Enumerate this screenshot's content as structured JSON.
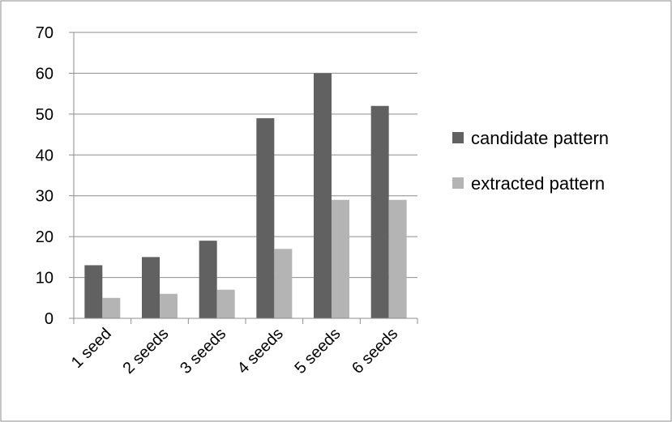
{
  "chart_data": {
    "type": "bar",
    "title": "",
    "xlabel": "",
    "ylabel": "",
    "categories": [
      "1 seed",
      "2 seeds",
      "3 seeds",
      "4 seeds",
      "5 seeds",
      "6 seeds"
    ],
    "series": [
      {
        "name": "candidate pattern",
        "color": "#616161",
        "values": [
          13,
          15,
          19,
          49,
          60,
          52
        ]
      },
      {
        "name": "extracted pattern",
        "color": "#b4b4b4",
        "values": [
          5,
          6,
          7,
          17,
          29,
          29
        ]
      }
    ],
    "ylim": [
      0,
      70
    ],
    "yticks": [
      0,
      10,
      20,
      30,
      40,
      50,
      60,
      70
    ],
    "grid": true,
    "legend_position": "right"
  }
}
